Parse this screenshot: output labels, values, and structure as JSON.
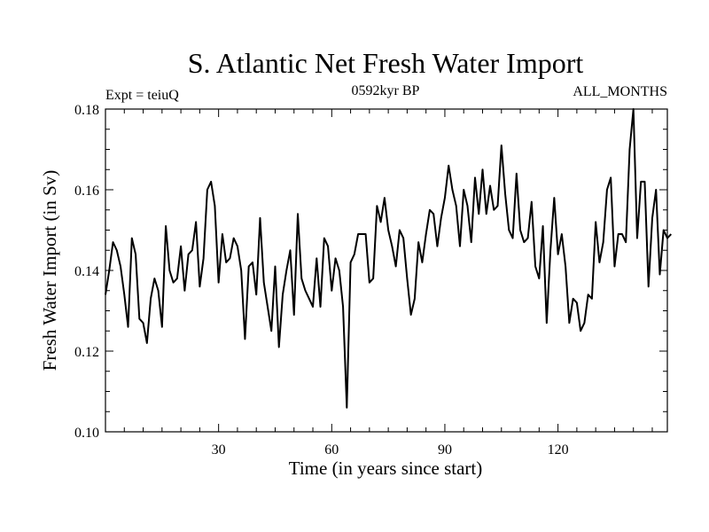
{
  "chart_data": {
    "type": "line",
    "title": "S. Atlantic Net Fresh Water Import",
    "subtitle_left": "Expt = teiuQ",
    "subtitle_center": "0592kyr BP",
    "subtitle_right": "ALL_MONTHS",
    "xlabel": "Time (in years since start)",
    "ylabel": "Fresh Water Import (in Sv)",
    "xlim": [
      0,
      149
    ],
    "ylim": [
      0.1,
      0.18
    ],
    "x_ticks": [
      30,
      60,
      90,
      120
    ],
    "x_tick_labels": [
      "30",
      "60",
      "90",
      "120"
    ],
    "y_ticks": [
      0.1,
      0.12,
      0.14,
      0.16,
      0.18
    ],
    "y_tick_labels": [
      "0.10",
      "0.12",
      "0.14",
      "0.16",
      "0.18"
    ],
    "series": [
      {
        "name": "Net Fresh Water Import",
        "x_start": 0,
        "x_step": 1,
        "values": [
          0.134,
          0.14,
          0.147,
          0.145,
          0.141,
          0.134,
          0.126,
          0.148,
          0.144,
          0.128,
          0.127,
          0.122,
          0.133,
          0.138,
          0.135,
          0.126,
          0.151,
          0.14,
          0.137,
          0.138,
          0.146,
          0.135,
          0.144,
          0.145,
          0.152,
          0.136,
          0.143,
          0.16,
          0.162,
          0.156,
          0.137,
          0.149,
          0.142,
          0.143,
          0.148,
          0.146,
          0.14,
          0.123,
          0.141,
          0.142,
          0.134,
          0.153,
          0.137,
          0.131,
          0.125,
          0.141,
          0.121,
          0.134,
          0.14,
          0.145,
          0.129,
          0.154,
          0.138,
          0.135,
          0.133,
          0.131,
          0.143,
          0.131,
          0.148,
          0.146,
          0.135,
          0.143,
          0.14,
          0.131,
          0.106,
          0.142,
          0.144,
          0.149,
          0.149,
          0.149,
          0.137,
          0.138,
          0.156,
          0.152,
          0.158,
          0.15,
          0.146,
          0.141,
          0.15,
          0.148,
          0.138,
          0.129,
          0.133,
          0.147,
          0.142,
          0.149,
          0.155,
          0.154,
          0.146,
          0.153,
          0.158,
          0.166,
          0.16,
          0.156,
          0.146,
          0.16,
          0.156,
          0.147,
          0.163,
          0.154,
          0.165,
          0.154,
          0.161,
          0.155,
          0.156,
          0.171,
          0.159,
          0.15,
          0.148,
          0.164,
          0.15,
          0.147,
          0.148,
          0.157,
          0.141,
          0.138,
          0.151,
          0.127,
          0.145,
          0.158,
          0.144,
          0.149,
          0.141,
          0.127,
          0.133,
          0.132,
          0.125,
          0.127,
          0.134,
          0.133,
          0.152,
          0.142,
          0.147,
          0.16,
          0.163,
          0.141,
          0.149,
          0.149,
          0.147,
          0.17,
          0.18,
          0.148,
          0.162,
          0.162,
          0.136,
          0.153,
          0.16,
          0.139,
          0.15,
          0.148,
          0.149
        ]
      }
    ]
  }
}
